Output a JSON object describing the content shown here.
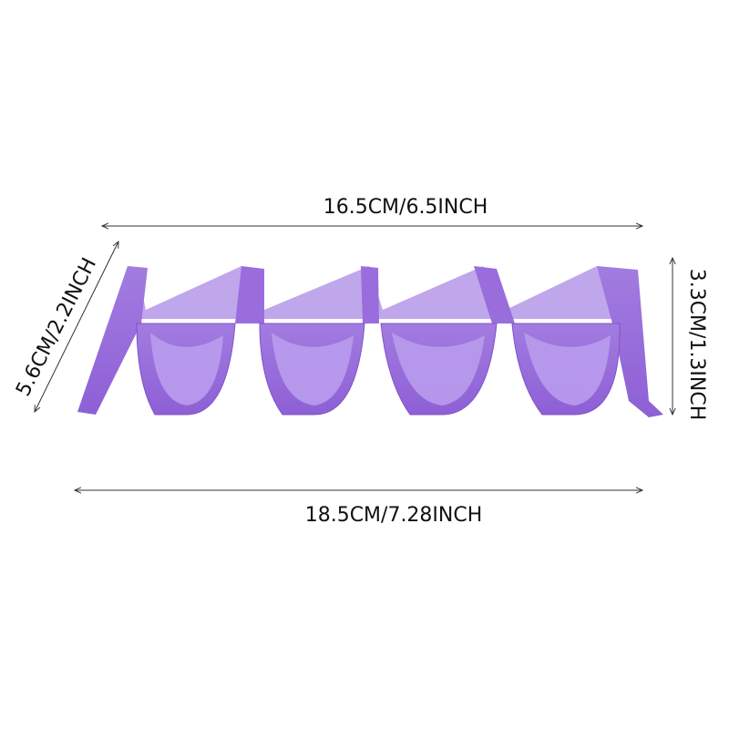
{
  "dimensions": {
    "top_width": "16.5CM/6.5INCH",
    "bottom_width": "18.5CM/7.28INCH",
    "depth": "5.6CM/2.2INCH",
    "height": "3.3CM/1.3INCH"
  }
}
